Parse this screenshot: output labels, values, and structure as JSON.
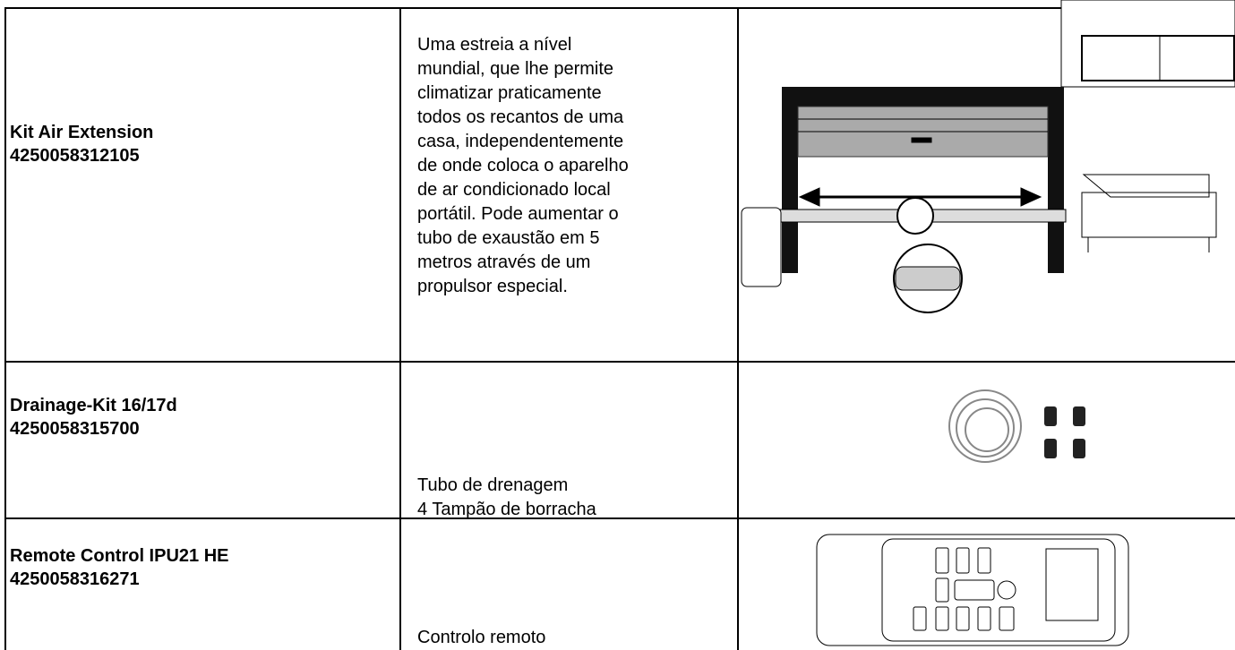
{
  "table": {
    "rows": [
      {
        "name": "Kit Air Extension",
        "code": "4250058312105",
        "description": [
          "Uma estreia a nível",
          "mundial, que lhe permite",
          "climatizar praticamente",
          "todos os recantos de uma",
          "casa, independentemente",
          "de onde coloca o aparelho",
          "de ar condicionado local",
          "portátil. Pode aumentar o",
          "tubo de exaustão em 5",
          "metros através de um",
          "propulsor especial."
        ]
      },
      {
        "name": "Drainage-Kit 16/17d",
        "code": "4250058315700",
        "description": [
          "Tubo de drenagem",
          "4 Tampão de borracha"
        ]
      },
      {
        "name": "Remote Control IPU21 HE",
        "code": "4250058316271",
        "description": [
          "Controlo remoto"
        ]
      }
    ]
  }
}
